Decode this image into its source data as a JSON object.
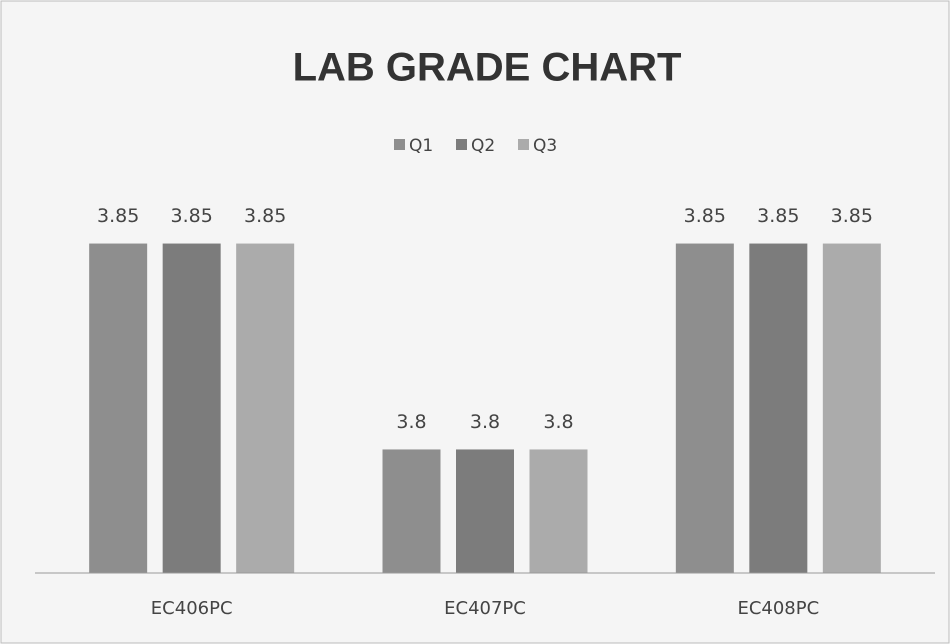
{
  "chart_data": {
    "type": "bar",
    "title": "LAB GRADE CHART",
    "categories": [
      "EC406PC",
      "EC407PC",
      "EC408PC"
    ],
    "series": [
      {
        "name": "Q1",
        "color": "#8e8e8e",
        "values": [
          3.85,
          3.8,
          3.85
        ]
      },
      {
        "name": "Q2",
        "color": "#7c7c7c",
        "values": [
          3.85,
          3.8,
          3.85
        ]
      },
      {
        "name": "Q3",
        "color": "#ababab",
        "values": [
          3.85,
          3.8,
          3.85
        ]
      }
    ],
    "ylim": [
      3.77,
      3.88
    ],
    "legend": "top",
    "data_labels": true
  }
}
